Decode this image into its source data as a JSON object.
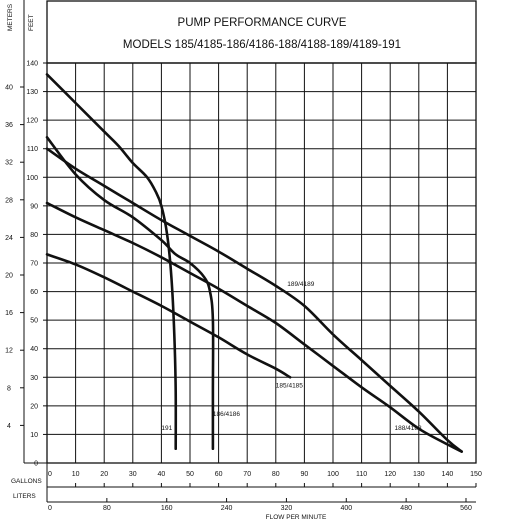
{
  "chart_data": {
    "type": "line",
    "title_line1": "PUMP PERFORMANCE CURVE",
    "title_line2": "MODELS 185/4185-186/4186-188/4188-189/4189-191",
    "left_axis_label": "METERS",
    "right_axis_label": "FEET",
    "gallons_label": "GALLONS",
    "liters_label": "LITERS",
    "xlabel": "FLOW PER MINUTE",
    "meters_ticks": [
      "4",
      "8",
      "12",
      "16",
      "20",
      "24",
      "28",
      "32",
      "36",
      "40"
    ],
    "feet_ticks": [
      "0",
      "10",
      "20",
      "30",
      "40",
      "50",
      "60",
      "70",
      "80",
      "90",
      "100",
      "110",
      "120",
      "130",
      "140"
    ],
    "gallons_ticks": [
      "0",
      "10",
      "20",
      "30",
      "40",
      "50",
      "60",
      "70",
      "80",
      "90",
      "100",
      "110",
      "120",
      "130",
      "140",
      "150"
    ],
    "liters_ticks": [
      "0",
      "80",
      "160",
      "240",
      "320",
      "400",
      "480",
      "560"
    ],
    "xlim": [
      0,
      150
    ],
    "ylim": [
      0,
      140
    ],
    "series": [
      {
        "name": "191",
        "label_at": [
          40,
          11.5
        ],
        "points": [
          [
            0,
            136
          ],
          [
            10,
            126
          ],
          [
            20,
            116
          ],
          [
            25,
            111
          ],
          [
            30,
            105
          ],
          [
            35,
            100
          ],
          [
            38,
            95
          ],
          [
            40,
            90
          ],
          [
            42,
            80
          ],
          [
            43.5,
            65
          ],
          [
            44.5,
            45
          ],
          [
            45,
            25
          ],
          [
            45,
            5
          ]
        ]
      },
      {
        "name": "186/4186",
        "label_at": [
          58,
          16.5
        ],
        "points": [
          [
            0,
            114
          ],
          [
            10,
            101
          ],
          [
            20,
            92
          ],
          [
            30,
            86
          ],
          [
            40,
            78
          ],
          [
            45,
            73
          ],
          [
            50,
            70
          ],
          [
            55,
            65
          ],
          [
            57,
            60
          ],
          [
            58,
            50
          ],
          [
            58,
            25
          ],
          [
            58,
            5
          ]
        ]
      },
      {
        "name": "189/4189",
        "label_at": [
          84,
          62
        ],
        "points": [
          [
            0,
            110
          ],
          [
            10,
            103
          ],
          [
            20,
            97
          ],
          [
            30,
            91
          ],
          [
            40,
            85
          ],
          [
            50,
            79.5
          ],
          [
            60,
            74
          ],
          [
            70,
            68
          ],
          [
            80,
            62
          ],
          [
            90,
            55
          ],
          [
            100,
            45
          ],
          [
            110,
            36
          ],
          [
            120,
            27
          ],
          [
            130,
            18
          ],
          [
            140,
            8
          ],
          [
            145,
            4
          ]
        ]
      },
      {
        "name": "188/4188",
        "label_at": [
          121.5,
          11.5
        ],
        "points": [
          [
            0,
            91
          ],
          [
            10,
            86
          ],
          [
            20,
            81.5
          ],
          [
            30,
            77
          ],
          [
            40,
            72
          ],
          [
            50,
            66.5
          ],
          [
            60,
            61
          ],
          [
            70,
            55
          ],
          [
            80,
            49
          ],
          [
            90,
            41.5
          ],
          [
            100,
            34
          ],
          [
            110,
            26.5
          ],
          [
            120,
            19.5
          ],
          [
            130,
            12
          ],
          [
            140,
            6.5
          ],
          [
            145,
            4
          ]
        ]
      },
      {
        "name": "185/4185",
        "label_at": [
          80,
          26.5
        ],
        "points": [
          [
            0,
            73
          ],
          [
            10,
            69.5
          ],
          [
            20,
            65
          ],
          [
            30,
            60
          ],
          [
            40,
            55
          ],
          [
            50,
            49.5
          ],
          [
            60,
            44
          ],
          [
            70,
            38
          ],
          [
            80,
            33
          ],
          [
            85,
            30
          ]
        ]
      }
    ]
  }
}
